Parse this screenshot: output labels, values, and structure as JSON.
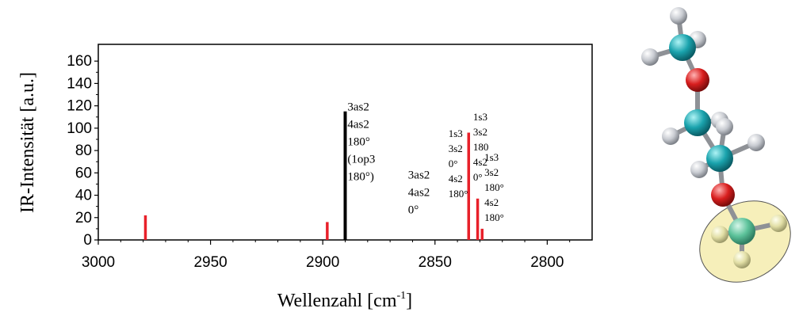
{
  "chart_data": {
    "type": "bar",
    "xlabel": "Wellenzahl [cm",
    "xlabel_sup": "-1",
    "xlabel_close": "]",
    "ylabel": "IR-Intensität [a.u.]",
    "xlim": [
      3000,
      2780
    ],
    "ylim": [
      0,
      175
    ],
    "x_ticks": [
      3000,
      2950,
      2900,
      2850,
      2800
    ],
    "x_tick_labels": [
      "3000",
      "2950",
      "2900",
      "2850",
      "2800"
    ],
    "y_ticks": [
      0,
      20,
      40,
      60,
      80,
      100,
      120,
      140,
      160
    ],
    "y_tick_labels": [
      "0",
      "20",
      "40",
      "60",
      "80",
      "100",
      "120",
      "140",
      "160"
    ],
    "grid": false,
    "series": [
      {
        "color": "#e8202a",
        "points": [
          {
            "x": 2979,
            "y": 22
          },
          {
            "x": 2898,
            "y": 16
          },
          {
            "x": 2835,
            "y": 96
          },
          {
            "x": 2831,
            "y": 37
          },
          {
            "x": 2829,
            "y": 10
          }
        ]
      },
      {
        "color": "#000000",
        "points": [
          {
            "x": 2890,
            "y": 115
          }
        ]
      }
    ],
    "annotations": [
      {
        "lines": [
          "3as2",
          "4as2",
          "180°",
          "(1op3",
          "180°)"
        ],
        "x": 2889,
        "y": 116,
        "size": "big"
      },
      {
        "lines": [
          "3as2",
          "4as2",
          "0°"
        ],
        "x": 2862,
        "y": 55,
        "size": "big"
      },
      {
        "lines": [
          "1s3",
          "3s2",
          "0°",
          "4s2",
          "180°"
        ],
        "x": 2844,
        "y": 92,
        "size": "small"
      },
      {
        "lines": [
          "1s3",
          "3s2",
          "180",
          "4s2",
          "0°"
        ],
        "x": 2833,
        "y": 107,
        "size": "small"
      },
      {
        "lines": [
          "1s3",
          "3s2",
          "180°",
          "4s2",
          "180°"
        ],
        "x": 2828,
        "y": 71,
        "size": "small"
      }
    ]
  },
  "molecule": {
    "atom_colors": {
      "carbon": "#1aa3ad",
      "oxygen": "#d81e1e",
      "hydrogen": "#c9ccd2",
      "highlight_carbon": "#5cc29a",
      "highlight_hydrogen": "#e2dfa6",
      "bond": "#8e9196",
      "highlight_area": "#f6efba"
    }
  }
}
